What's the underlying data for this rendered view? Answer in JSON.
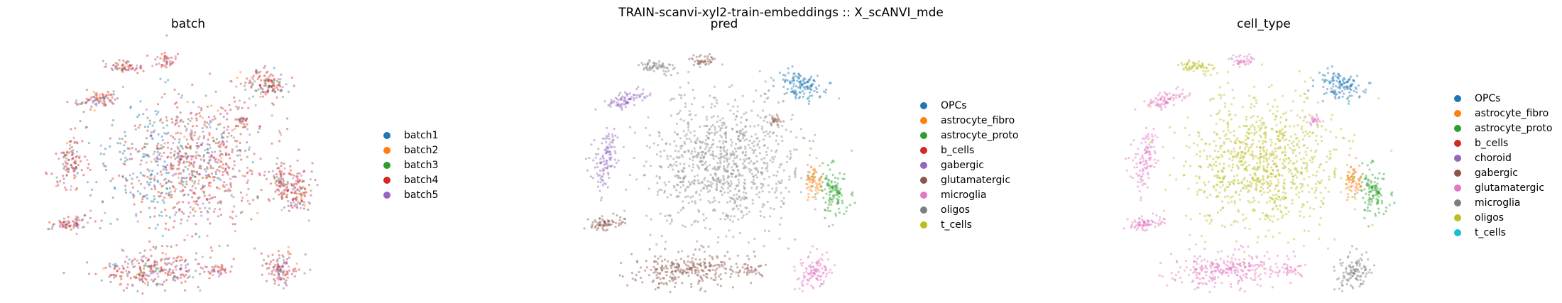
{
  "figure": {
    "suptitle": "TRAIN-scanvi-xyl2-train-embeddings :: X_scANVI_mde"
  },
  "chart_data": [
    {
      "type": "scatter",
      "title": "batch",
      "background_color": "#e06d6d",
      "legend": [
        "batch1",
        "batch2",
        "batch3",
        "batch4",
        "batch5"
      ],
      "colors": [
        "#1f77b4",
        "#ff7f0e",
        "#2ca02c",
        "#d62728",
        "#9467bd"
      ],
      "legend_placement": "right",
      "grid": false,
      "axes": false
    },
    {
      "type": "scatter",
      "title": "pred",
      "background_color": "#8c564b",
      "legend": [
        "OPCs",
        "astrocyte_fibro",
        "astrocyte_proto",
        "b_cells",
        "gabergic",
        "glutamatergic",
        "microglia",
        "oligos",
        "t_cells"
      ],
      "colors": [
        "#1f77b4",
        "#ff7f0e",
        "#2ca02c",
        "#d62728",
        "#9467bd",
        "#8c564b",
        "#e377c2",
        "#7f7f7f",
        "#bcbd22"
      ],
      "legend_placement": "right",
      "grid": false,
      "axes": false
    },
    {
      "type": "scatter",
      "title": "cell_type",
      "background_color": "#e377c2",
      "legend": [
        "OPCs",
        "astrocyte_fibro",
        "astrocyte_proto",
        "b_cells",
        "choroid",
        "gabergic",
        "glutamatergic",
        "microglia",
        "oligos",
        "t_cells"
      ],
      "colors": [
        "#1f77b4",
        "#ff7f0e",
        "#2ca02c",
        "#d62728",
        "#9467bd",
        "#8c564b",
        "#e377c2",
        "#7f7f7f",
        "#bcbd22",
        "#17becf"
      ],
      "legend_placement": "right",
      "grid": false,
      "axes": false
    }
  ]
}
